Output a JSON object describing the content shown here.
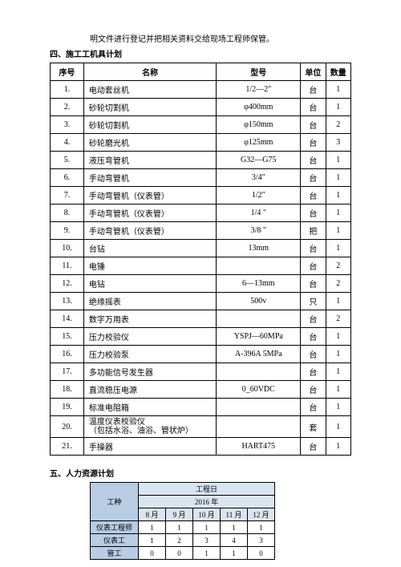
{
  "intro": "明文件进行登记并把相关资料交给现场工程师保管。",
  "section4": {
    "heading": "四、施工工机具计划",
    "headers": {
      "seq": "序号",
      "name": "名称",
      "model": "型号",
      "unit": "单位",
      "qty": "数量"
    },
    "rows": [
      {
        "seq": "1.",
        "name": "电动套丝机",
        "model": "1/2—2\"",
        "unit": "台",
        "qty": "1"
      },
      {
        "seq": "2.",
        "name": "砂轮切割机",
        "model": "φ400mm",
        "unit": "台",
        "qty": "1"
      },
      {
        "seq": "3.",
        "name": "砂轮切割机",
        "model": "φ150mm",
        "unit": "台",
        "qty": "2"
      },
      {
        "seq": "4.",
        "name": "砂轮磨光机",
        "model": "φ125mm",
        "unit": "台",
        "qty": "3"
      },
      {
        "seq": "5.",
        "name": "液压弯管机",
        "model": "G32—G75",
        "unit": "台",
        "qty": "1"
      },
      {
        "seq": "6.",
        "name": "手动弯管机",
        "model": "3/4\"",
        "unit": "台",
        "qty": "1"
      },
      {
        "seq": "7.",
        "name": "手动弯管机（仪表管）",
        "model": "1/2\"",
        "unit": "台",
        "qty": "1"
      },
      {
        "seq": "8.",
        "name": "手动弯管机（仪表管）",
        "model": "1/4 \"",
        "unit": "台",
        "qty": "1"
      },
      {
        "seq": "9.",
        "name": "手动弯管机（仪表管）",
        "model": "3/8 \"",
        "unit": "把",
        "qty": "1"
      },
      {
        "seq": "10.",
        "name": "台钻",
        "model": "13mm",
        "unit": "台",
        "qty": "1"
      },
      {
        "seq": "11.",
        "name": "电锤",
        "model": "",
        "unit": "台",
        "qty": "2"
      },
      {
        "seq": "12.",
        "name": "电钻",
        "model": "6—13mm",
        "unit": "台",
        "qty": "2"
      },
      {
        "seq": "13.",
        "name": "绝缘摇表",
        "model": "500v",
        "unit": "只",
        "qty": "1"
      },
      {
        "seq": "14.",
        "name": "数字万用表",
        "model": "",
        "unit": "台",
        "qty": "2"
      },
      {
        "seq": "15.",
        "name": "压力校验仪",
        "model": "YSPJ—60MPa",
        "unit": "台",
        "qty": "1"
      },
      {
        "seq": "16.",
        "name": "压力校验泵",
        "model": "A-396A  5MPa",
        "unit": "台",
        "qty": "1"
      },
      {
        "seq": "17.",
        "name": "多功能信号发生器",
        "model": "",
        "unit": "台",
        "qty": "1"
      },
      {
        "seq": "18.",
        "name": "直流稳压电源",
        "model": "0_60VDC",
        "unit": "台",
        "qty": "1"
      },
      {
        "seq": "19.",
        "name": "标准电阻箱",
        "model": "",
        "unit": "台",
        "qty": "1"
      },
      {
        "seq": "20.",
        "name": "温度仪表校验仪\n（包括水浴、油浴、管状炉）",
        "model": "",
        "unit": "套",
        "qty": "1"
      },
      {
        "seq": "21.",
        "name": "手操器",
        "model": "HART475",
        "unit": "台",
        "qty": "1"
      }
    ]
  },
  "section5": {
    "heading": "五、人力资源计划",
    "table": {
      "wtype_label": "工种",
      "top_header": "工程日",
      "year": "2016 年",
      "months": [
        "8 月",
        "9 月",
        "10 月",
        "11 月",
        "12 月"
      ],
      "rows": [
        {
          "name": "仪表工程师",
          "vals": [
            "1",
            "1",
            "1",
            "1",
            "1"
          ]
        },
        {
          "name": "仪表工",
          "vals": [
            "1",
            "2",
            "3",
            "4",
            "3"
          ]
        },
        {
          "name": "管工",
          "vals": [
            "0",
            "0",
            "1",
            "1",
            "0"
          ]
        }
      ]
    }
  },
  "colors": {
    "tableBorder": "#000000",
    "hrHeader": "#b8cce4",
    "hrSub": "#dbe5f1"
  }
}
